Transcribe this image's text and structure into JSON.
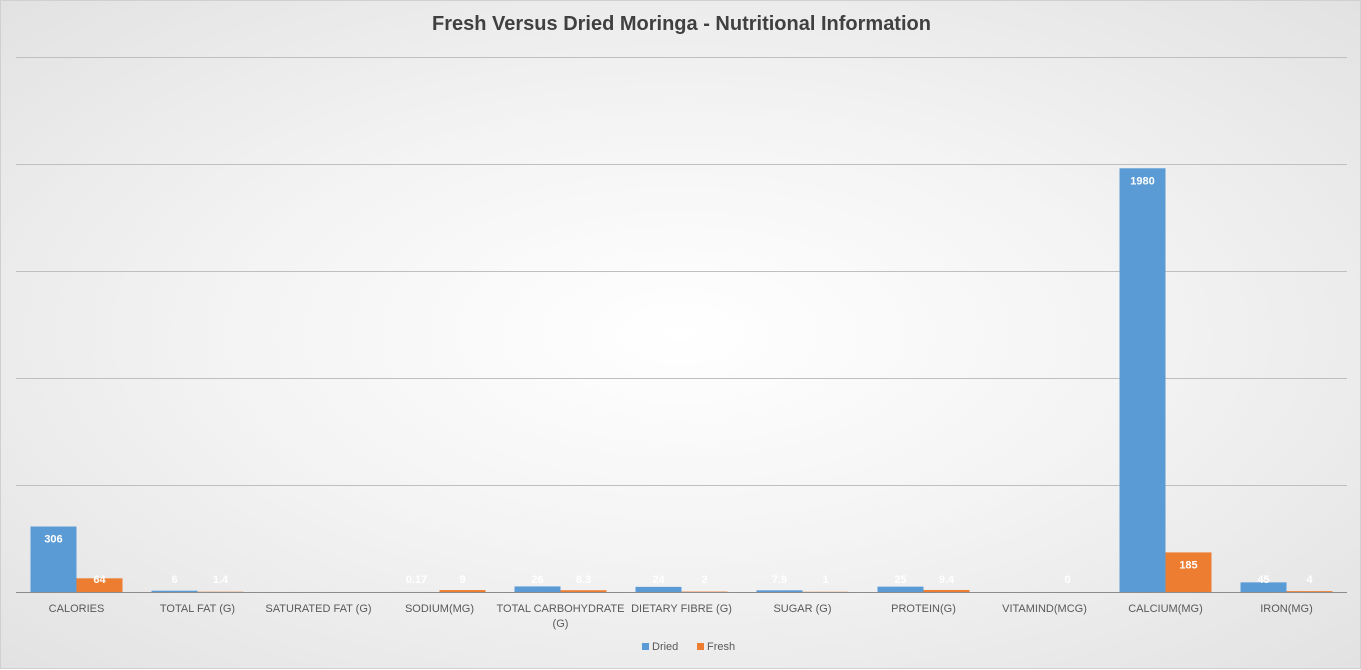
{
  "chart_data": {
    "type": "bar",
    "title": "Fresh Versus Dried Moringa - Nutritional Information",
    "categories": [
      "CALORIES",
      "TOTAL FAT (G)",
      "SATURATED FAT (G)",
      "SODIUM(MG)",
      "TOTAL CARBOHYDRATE (G)",
      "DIETARY FIBRE (G)",
      "SUGAR (G)",
      "PROTEIN(G)",
      "VITAMIND(MCG)",
      "CALCIUM(MG)",
      "IRON(MG)"
    ],
    "series": [
      {
        "name": "Dried",
        "color": "#5b9bd5",
        "values": [
          306,
          6,
          null,
          0.17,
          26,
          24,
          7.9,
          25,
          null,
          1980,
          45
        ],
        "labels": [
          "306",
          "6",
          "",
          "0.17",
          "26",
          "24",
          "7.9",
          "25",
          "",
          "1980",
          "45"
        ]
      },
      {
        "name": "Fresh",
        "color": "#ed7d31",
        "values": [
          64,
          1.4,
          null,
          9,
          8.3,
          2,
          1,
          9.4,
          0,
          185,
          4
        ],
        "labels": [
          "64",
          "1.4",
          "",
          "9",
          "8.3",
          "2",
          "1",
          "9.4",
          "0",
          "185",
          "4"
        ]
      }
    ],
    "ylim": [
      0,
      2500
    ],
    "y_gridlines": [
      500,
      1000,
      1500,
      2000,
      2500
    ],
    "y_tick_labels_shown": false,
    "grid": true,
    "legend_position": "bottom",
    "background": "light gray radial gradient"
  }
}
